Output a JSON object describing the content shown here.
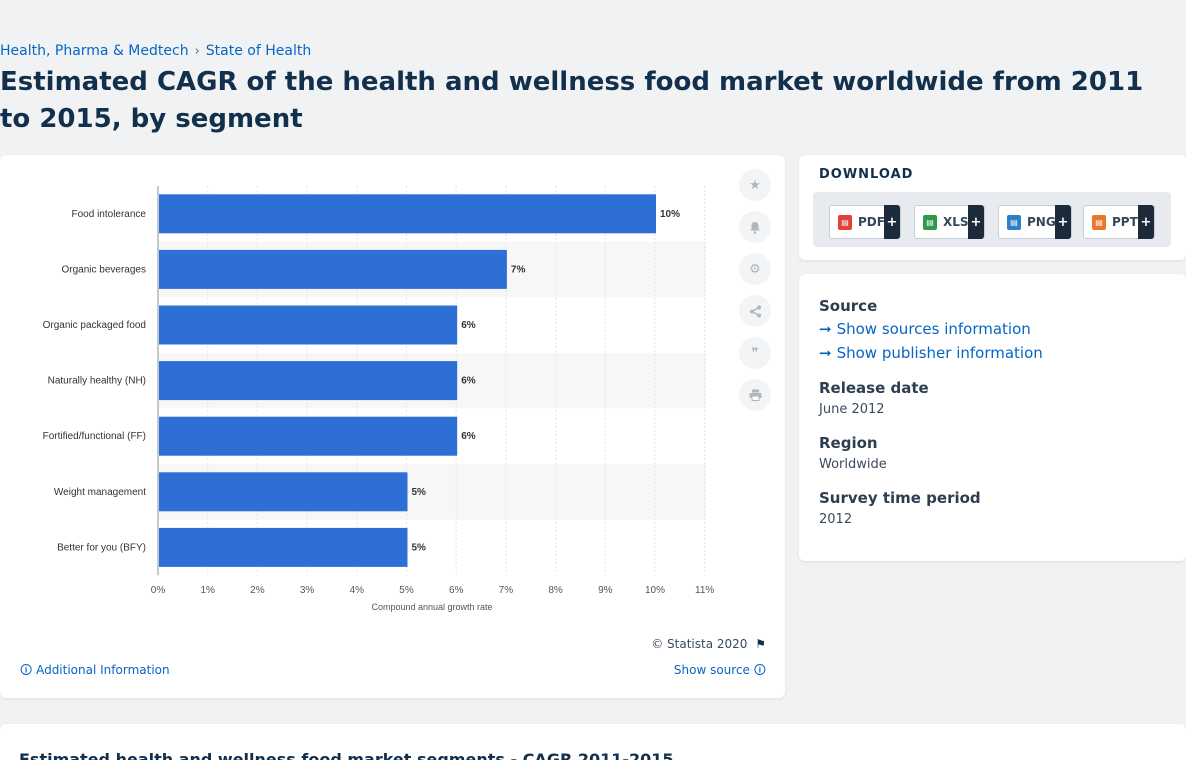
{
  "breadcrumb": {
    "items": [
      "Health, Pharma & Medtech",
      "State of Health"
    ],
    "separator": "›"
  },
  "page_title": "Estimated CAGR of the health and wellness food market worldwide from 2011 to 2015, by segment",
  "toolbar_icons": [
    "star-icon",
    "bell-icon",
    "gear-icon",
    "share-icon",
    "quote-icon",
    "print-icon"
  ],
  "chart_footer": {
    "copyright": "© Statista 2020",
    "additional_info": "Additional Information",
    "show_source": "Show source"
  },
  "download": {
    "title": "DOWNLOAD",
    "buttons": [
      {
        "label": "PDF",
        "color": "#e0413a",
        "plus": "+"
      },
      {
        "label": "XLS",
        "color": "#2e9a48",
        "plus": "+"
      },
      {
        "label": "PNG",
        "color": "#2f80c9",
        "plus": "+"
      },
      {
        "label": "PPT",
        "color": "#e8772e",
        "plus": "+"
      }
    ]
  },
  "source_panel": {
    "source_heading": "Source",
    "show_sources": "Show sources information",
    "show_publisher": "Show publisher information",
    "release_heading": "Release date",
    "release_value": "June 2012",
    "region_heading": "Region",
    "region_value": "Worldwide",
    "survey_heading": "Survey time period",
    "survey_value": "2012"
  },
  "bottom_title": "Estimated health and wellness food market segments - CAGR 2011-2015",
  "chart_data": {
    "type": "bar",
    "orientation": "horizontal",
    "categories": [
      "Food intolerance",
      "Organic beverages",
      "Organic packaged food",
      "Naturally healthy (NH)",
      "Fortified/functional (FF)",
      "Weight management",
      "Better for you (BFY)"
    ],
    "values": [
      10,
      7,
      6,
      6,
      6,
      5,
      5
    ],
    "value_labels": [
      "10%",
      "7%",
      "6%",
      "6%",
      "6%",
      "5%",
      "5%"
    ],
    "x_ticks": [
      "0%",
      "1%",
      "2%",
      "3%",
      "4%",
      "5%",
      "6%",
      "7%",
      "8%",
      "9%",
      "10%",
      "11%"
    ],
    "xlim": [
      0,
      11
    ],
    "xlabel": "Compound annual growth rate",
    "ylabel": "",
    "grid": true,
    "bar_color": "#2e6fd6"
  }
}
